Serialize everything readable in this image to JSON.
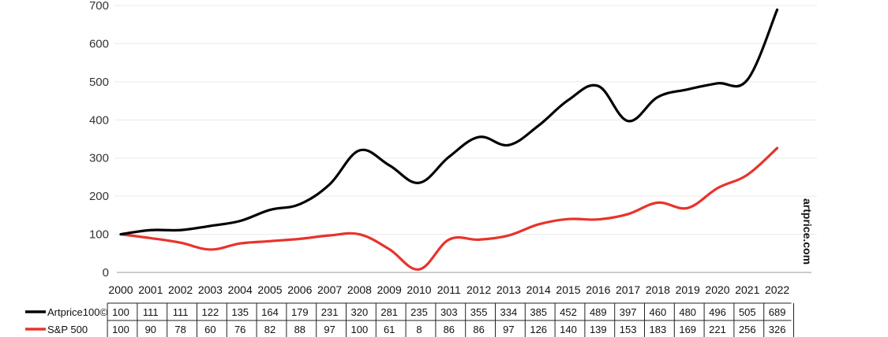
{
  "chart_data": {
    "type": "line",
    "title": "",
    "xlabel": "",
    "ylabel": "",
    "categories": [
      "2000",
      "2001",
      "2002",
      "2003",
      "2004",
      "2005",
      "2006",
      "2007",
      "2008",
      "2009",
      "2010",
      "2011",
      "2012",
      "2013",
      "2014",
      "2015",
      "2016",
      "2017",
      "2018",
      "2019",
      "2020",
      "2021",
      "2022"
    ],
    "series": [
      {
        "name": "Artprice100©",
        "color": "#000000",
        "values": [
          100,
          111,
          111,
          122,
          135,
          164,
          179,
          231,
          320,
          281,
          235,
          303,
          355,
          334,
          385,
          452,
          489,
          397,
          460,
          480,
          496,
          505,
          689
        ]
      },
      {
        "name": "S&P 500",
        "color": "#e8332c",
        "values": [
          100,
          90,
          78,
          60,
          76,
          82,
          88,
          97,
          100,
          61,
          8,
          86,
          86,
          97,
          126,
          140,
          139,
          153,
          183,
          169,
          221,
          256,
          326
        ]
      }
    ],
    "ylim": [
      0,
      700
    ],
    "yticks": [
      0,
      100,
      200,
      300,
      400,
      500,
      600,
      700
    ],
    "grid": true,
    "legend": "bottom-left data table",
    "watermark": "artprice.com"
  }
}
